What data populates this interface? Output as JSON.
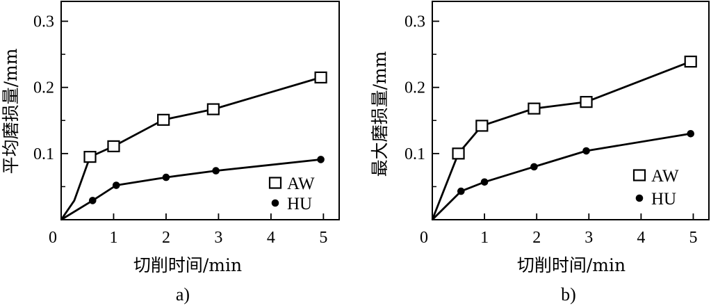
{
  "chart_data": [
    {
      "type": "line",
      "panel_label": "a)",
      "xlabel": "切削时间/min",
      "ylabel": "平均磨损量/mm",
      "xlim": [
        0,
        5.3
      ],
      "ylim": [
        0,
        0.33
      ],
      "x_ticks": [
        0,
        1,
        2,
        3,
        4,
        5
      ],
      "x_tick_labels": [
        "0",
        "1",
        "2",
        "3",
        "4",
        "5"
      ],
      "y_ticks": [
        0.1,
        0.2,
        0.3
      ],
      "y_tick_labels": [
        "0.1",
        "0.2",
        "0.3"
      ],
      "y_minor_ticks": [
        0.05,
        0.15,
        0.25
      ],
      "legend_position": "bottom-right",
      "series": [
        {
          "name": "AW",
          "marker": "open-square",
          "x": [
            0,
            0.25,
            0.55,
            1.0,
            1.95,
            2.9,
            4.95
          ],
          "y": [
            0,
            0.029,
            0.095,
            0.111,
            0.151,
            0.167,
            0.215
          ],
          "marked": [
            false,
            false,
            true,
            true,
            true,
            true,
            true
          ]
        },
        {
          "name": "HU",
          "marker": "filled-circle",
          "x": [
            0,
            0.6,
            1.05,
            2.0,
            2.95,
            4.95
          ],
          "y": [
            0,
            0.029,
            0.052,
            0.064,
            0.074,
            0.091
          ],
          "marked": [
            false,
            true,
            true,
            true,
            true,
            true
          ]
        }
      ]
    },
    {
      "type": "line",
      "panel_label": "b)",
      "xlabel": "切削时间/min",
      "ylabel": "最大磨损量/mm",
      "xlim": [
        0,
        5.3
      ],
      "ylim": [
        0,
        0.33
      ],
      "x_ticks": [
        0,
        1,
        2,
        3,
        4,
        5
      ],
      "x_tick_labels": [
        "0",
        "1",
        "2",
        "3",
        "4",
        "5"
      ],
      "y_ticks": [
        0.1,
        0.2,
        0.3
      ],
      "y_tick_labels": [
        "0.1",
        "0.2",
        "0.3"
      ],
      "y_minor_ticks": [
        0.05,
        0.15,
        0.25
      ],
      "legend_position": "bottom-right",
      "series": [
        {
          "name": "AW",
          "marker": "open-square",
          "x": [
            0,
            0.5,
            0.95,
            1.95,
            2.95,
            4.95
          ],
          "y": [
            0,
            0.1,
            0.142,
            0.168,
            0.178,
            0.239
          ],
          "marked": [
            false,
            true,
            true,
            true,
            true,
            true
          ]
        },
        {
          "name": "HU",
          "marker": "filled-circle",
          "x": [
            0,
            0.55,
            1.0,
            1.95,
            2.95,
            4.95
          ],
          "y": [
            0,
            0.043,
            0.057,
            0.08,
            0.104,
            0.13
          ],
          "marked": [
            false,
            true,
            true,
            true,
            true,
            true
          ]
        }
      ]
    }
  ]
}
